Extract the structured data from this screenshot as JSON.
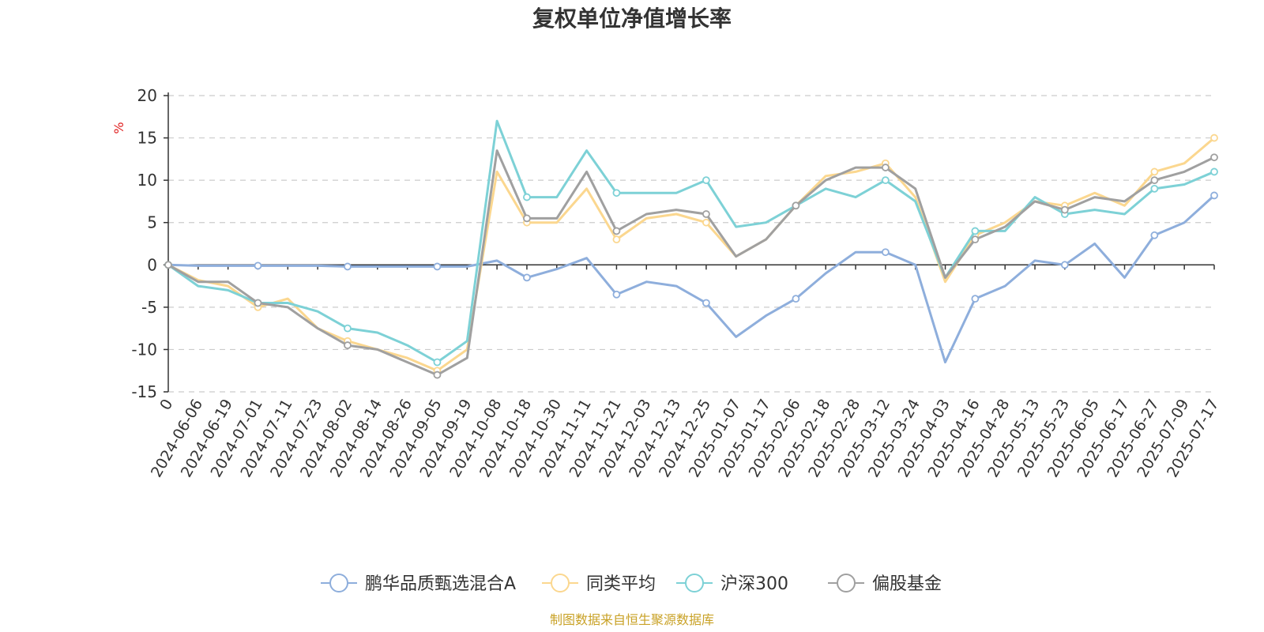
{
  "chart_data": {
    "type": "line",
    "title": "复权单位净值增长率",
    "y_unit": "%",
    "ylim": [
      -15,
      20
    ],
    "yticks": [
      -15,
      -10,
      -5,
      0,
      5,
      10,
      15,
      20
    ],
    "grid": true,
    "legend_position": "bottom",
    "x_tick_labels": [
      "0",
      "2024-06-06",
      "2024-06-19",
      "2024-07-01",
      "2024-07-11",
      "2024-07-23",
      "2024-08-02",
      "2024-08-14",
      "2024-08-26",
      "2024-09-05",
      "2024-09-19",
      "2024-10-08",
      "2024-10-18",
      "2024-10-30",
      "2024-11-11",
      "2024-11-21",
      "2024-12-03",
      "2024-12-13",
      "2024-12-25",
      "2025-01-07",
      "2025-01-17",
      "2025-02-06",
      "2025-02-18",
      "2025-02-28",
      "2025-03-12",
      "2025-03-24",
      "2025-04-03",
      "2025-04-16",
      "2025-04-28",
      "2025-05-13",
      "2025-05-23",
      "2025-06-05",
      "2025-06-17",
      "2025-06-27",
      "2025-07-09",
      "2025-07-17"
    ],
    "series": [
      {
        "name": "鹏华品质甄选混合A",
        "color": "#8eaedc",
        "values": [
          0,
          -0.1,
          -0.1,
          -0.1,
          -0.1,
          -0.1,
          -0.2,
          -0.2,
          -0.2,
          -0.2,
          -0.2,
          0.5,
          -1.5,
          -0.5,
          0.8,
          -3.5,
          -2.0,
          -2.5,
          -4.5,
          -8.5,
          -6.0,
          -4.0,
          -1.0,
          1.5,
          1.5,
          0.0,
          -11.5,
          -4.0,
          -2.5,
          0.5,
          0.0,
          2.5,
          -1.5,
          3.5,
          5.0,
          8.2
        ]
      },
      {
        "name": "同类平均",
        "color": "#fbd78f",
        "values": [
          0,
          -1.8,
          -2.5,
          -5.0,
          -4.0,
          -7.5,
          -9.0,
          -10.0,
          -11.0,
          -12.5,
          -10.0,
          11.0,
          5.0,
          5.0,
          9.0,
          3.0,
          5.5,
          6.0,
          5.0,
          1.0,
          3.0,
          7.0,
          10.5,
          11.0,
          12.0,
          8.0,
          -2.0,
          3.5,
          5.0,
          7.5,
          7.0,
          8.5,
          7.0,
          11.0,
          12.0,
          15.0
        ]
      },
      {
        "name": "沪深300",
        "color": "#7dd1d6",
        "values": [
          0,
          -2.5,
          -3.0,
          -4.5,
          -4.5,
          -5.5,
          -7.5,
          -8.0,
          -9.5,
          -11.5,
          -9.0,
          17.0,
          8.0,
          8.0,
          13.5,
          8.5,
          8.5,
          8.5,
          10.0,
          4.5,
          5.0,
          7.0,
          9.0,
          8.0,
          10.0,
          7.5,
          -1.5,
          4.0,
          4.0,
          8.0,
          6.0,
          6.5,
          6.0,
          9.0,
          9.5,
          11.0
        ]
      },
      {
        "name": "偏股基金",
        "color": "#a0a0a0",
        "values": [
          0,
          -2.0,
          -2.0,
          -4.5,
          -5.0,
          -7.5,
          -9.5,
          -10.0,
          -11.5,
          -13.0,
          -11.0,
          13.5,
          5.5,
          5.5,
          11.0,
          4.0,
          6.0,
          6.5,
          6.0,
          1.0,
          3.0,
          7.0,
          10.0,
          11.5,
          11.5,
          9.0,
          -1.5,
          3.0,
          4.5,
          7.5,
          6.5,
          8.0,
          7.5,
          10.0,
          11.0,
          12.7
        ]
      }
    ],
    "source": "制图数据来自恒生聚源数据库"
  }
}
